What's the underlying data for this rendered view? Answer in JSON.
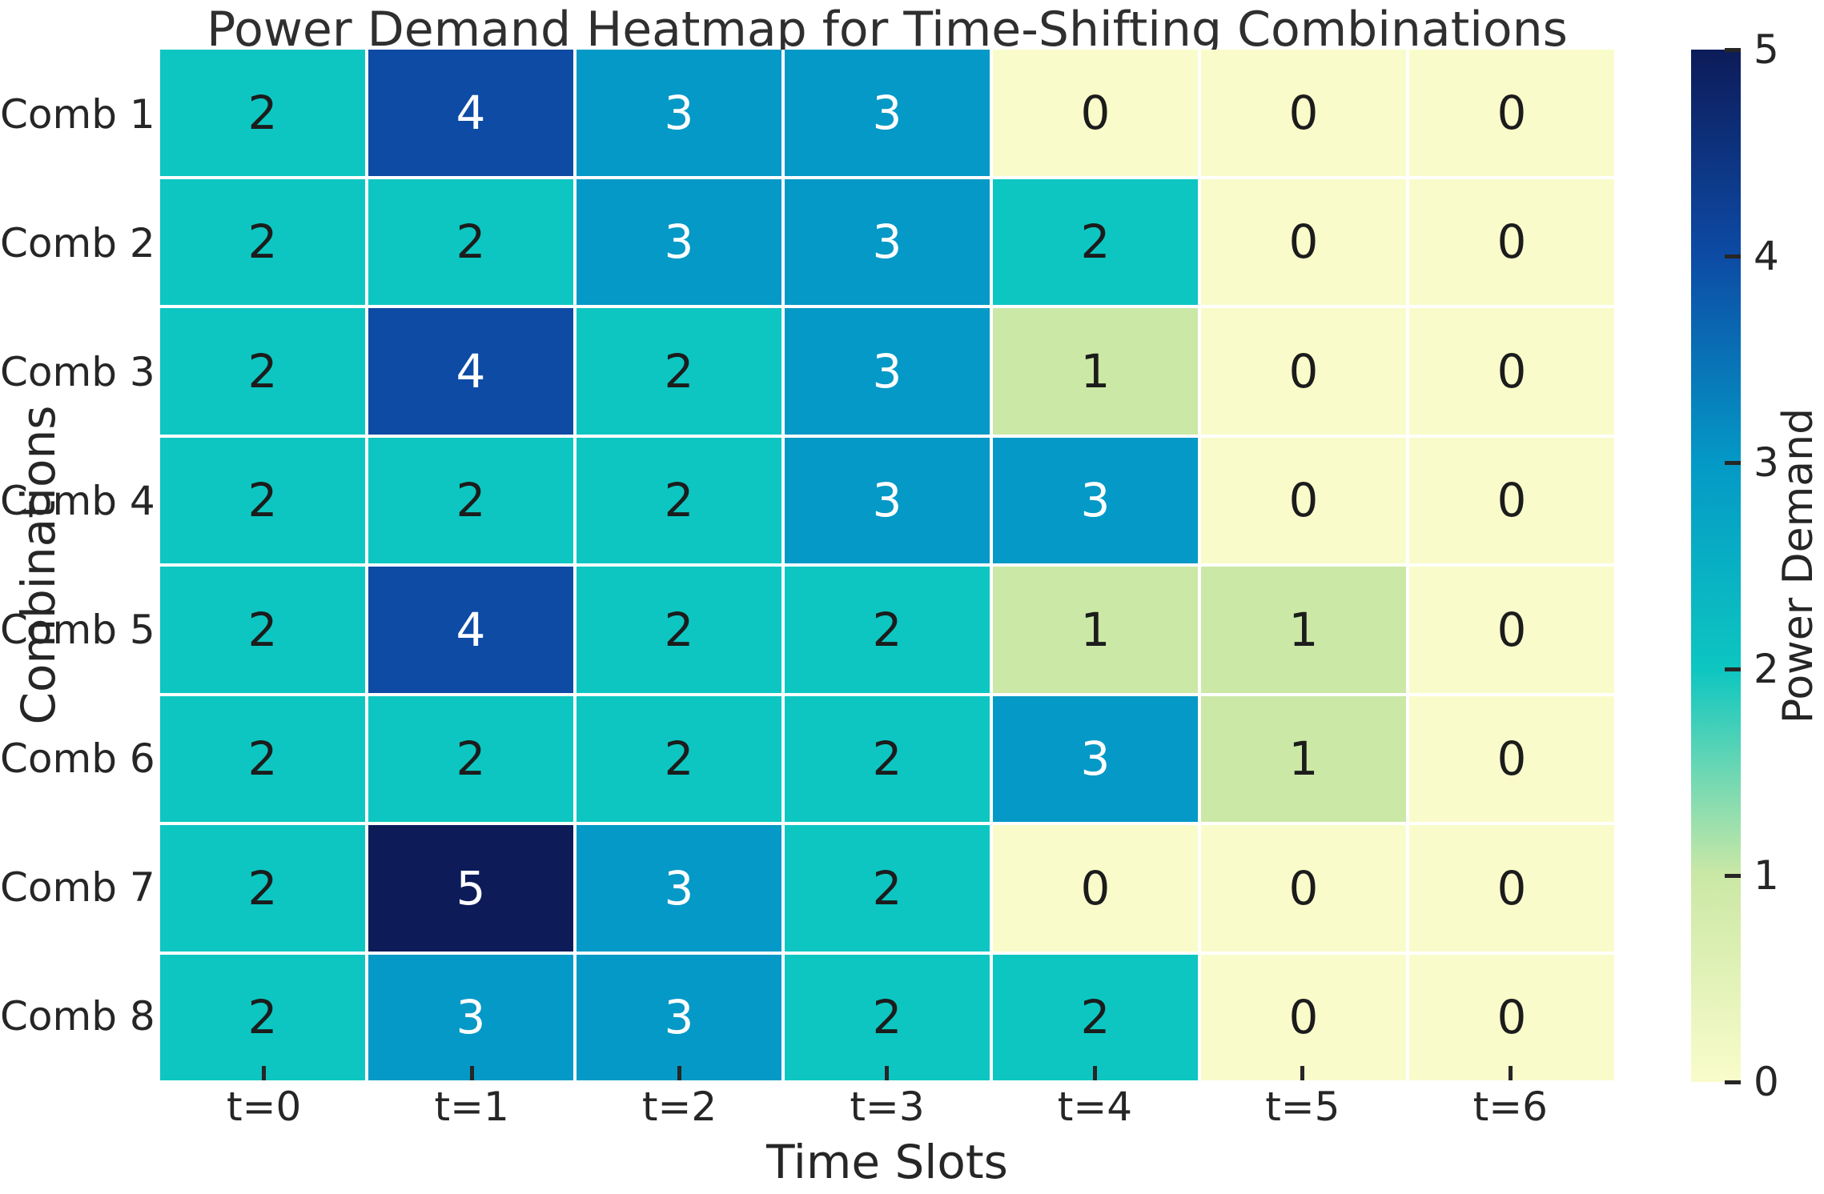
{
  "chart_data": {
    "type": "heatmap",
    "title": "Power Demand Heatmap for Time-Shifting Combinations",
    "xlabel": "Time Slots",
    "ylabel": "Combinations",
    "x_ticklabels": [
      "t=0",
      "t=1",
      "t=2",
      "t=3",
      "t=4",
      "t=5",
      "t=6"
    ],
    "y_ticklabels": [
      "Comb 1",
      "Comb 2",
      "Comb 3",
      "Comb 4",
      "Comb 5",
      "Comb 6",
      "Comb 7",
      "Comb 8"
    ],
    "values": [
      [
        2,
        4,
        3,
        3,
        0,
        0,
        0
      ],
      [
        2,
        2,
        3,
        3,
        2,
        0,
        0
      ],
      [
        2,
        4,
        2,
        3,
        1,
        0,
        0
      ],
      [
        2,
        2,
        2,
        3,
        3,
        0,
        0
      ],
      [
        2,
        4,
        2,
        2,
        1,
        1,
        0
      ],
      [
        2,
        2,
        2,
        2,
        3,
        1,
        0
      ],
      [
        2,
        5,
        3,
        2,
        0,
        0,
        0
      ],
      [
        2,
        3,
        3,
        2,
        2,
        0,
        0
      ]
    ],
    "annotated": true,
    "grid": false,
    "legend_position": "right-colorbar",
    "colorbar": {
      "label": "Power Demand",
      "ticks": [
        0,
        1,
        2,
        3,
        4,
        5
      ],
      "vmin": 0,
      "vmax": 5
    },
    "colormap": {
      "name": "YlGnBu",
      "value_colors": {
        "0": "#f9fcca",
        "1": "#cbe8a6",
        "2": "#0dc6c1",
        "3": "#0499c6",
        "4": "#0d4ba5",
        "5": "#0d1b59"
      },
      "annotation_color_dark_cells": "#ffffff",
      "annotation_color_light_cells": "#1c1c1c",
      "white_text_min_value": 3
    },
    "text_color": "#262626",
    "background_color": "#ffffff",
    "cell_gap_color": "#ffffff"
  }
}
